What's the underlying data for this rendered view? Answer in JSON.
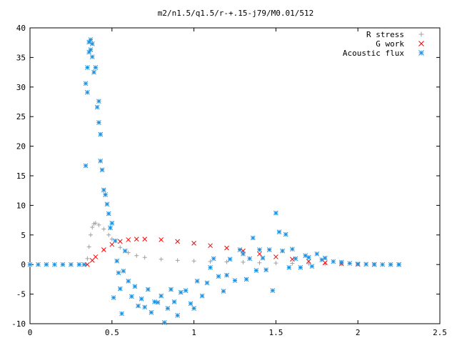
{
  "chart_data": {
    "type": "scatter",
    "title": "m2/n1.5/q1.5/r-+.15-j79/M0.01/512",
    "xlabel": "",
    "ylabel": "",
    "xlim": [
      0,
      2.5
    ],
    "ylim": [
      -10,
      40
    ],
    "x_ticks": [
      "0",
      "0.5",
      "1",
      "1.5",
      "2",
      "2.5"
    ],
    "y_ticks": [
      "-10",
      "-5",
      "0",
      "5",
      "10",
      "15",
      "20",
      "25",
      "30",
      "35",
      "40"
    ],
    "legend_position": "top-right",
    "grid": false,
    "series": [
      {
        "name": "R stress",
        "marker": "plus",
        "color": "#a0a0a0",
        "points": [
          [
            0.0,
            0
          ],
          [
            0.1,
            0
          ],
          [
            0.2,
            0
          ],
          [
            0.3,
            0
          ],
          [
            0.34,
            0
          ],
          [
            0.35,
            1.0
          ],
          [
            0.36,
            3.0
          ],
          [
            0.37,
            5.0
          ],
          [
            0.38,
            6.3
          ],
          [
            0.39,
            6.9
          ],
          [
            0.4,
            7.0
          ],
          [
            0.42,
            6.7
          ],
          [
            0.45,
            6.0
          ],
          [
            0.48,
            5.0
          ],
          [
            0.5,
            4.3
          ],
          [
            0.55,
            2.9
          ],
          [
            0.6,
            2.0
          ],
          [
            0.65,
            1.5
          ],
          [
            0.7,
            1.2
          ],
          [
            0.8,
            0.9
          ],
          [
            0.9,
            0.7
          ],
          [
            1.0,
            0.6
          ],
          [
            1.1,
            0.5
          ],
          [
            1.2,
            0.45
          ],
          [
            1.3,
            0.4
          ],
          [
            1.4,
            0.3
          ],
          [
            1.5,
            0.25
          ],
          [
            1.6,
            0.2
          ],
          [
            1.7,
            0.15
          ],
          [
            1.8,
            0.1
          ],
          [
            1.9,
            0.1
          ],
          [
            2.0,
            0.05
          ],
          [
            2.1,
            0.02
          ],
          [
            2.2,
            0.0
          ],
          [
            2.25,
            0.0
          ]
        ]
      },
      {
        "name": "G work",
        "marker": "cross",
        "color": "#ff0000",
        "points": [
          [
            0.35,
            0.0
          ],
          [
            0.38,
            0.7
          ],
          [
            0.4,
            1.3
          ],
          [
            0.45,
            2.5
          ],
          [
            0.5,
            3.4
          ],
          [
            0.55,
            3.9
          ],
          [
            0.6,
            4.2
          ],
          [
            0.65,
            4.3
          ],
          [
            0.7,
            4.3
          ],
          [
            0.8,
            4.2
          ],
          [
            0.9,
            3.9
          ],
          [
            1.0,
            3.6
          ],
          [
            1.1,
            3.2
          ],
          [
            1.2,
            2.8
          ],
          [
            1.3,
            2.3
          ],
          [
            1.4,
            1.8
          ],
          [
            1.5,
            1.3
          ],
          [
            1.6,
            0.9
          ],
          [
            1.7,
            0.55
          ],
          [
            1.8,
            0.3
          ],
          [
            1.9,
            0.12
          ],
          [
            2.0,
            0.04
          ],
          [
            2.1,
            0.0
          ],
          [
            2.25,
            0.0
          ]
        ]
      },
      {
        "name": "Acoustic flux",
        "marker": "star",
        "color": "#1e90e0",
        "points": [
          [
            0.0,
            0
          ],
          [
            0.05,
            0
          ],
          [
            0.1,
            0
          ],
          [
            0.15,
            0
          ],
          [
            0.2,
            0
          ],
          [
            0.25,
            0
          ],
          [
            0.3,
            0
          ],
          [
            0.33,
            0
          ],
          [
            0.34,
            16.7
          ],
          [
            0.34,
            30.6
          ],
          [
            0.35,
            33.3
          ],
          [
            0.35,
            29.1
          ],
          [
            0.36,
            35.9
          ],
          [
            0.36,
            37.6
          ],
          [
            0.37,
            38.0
          ],
          [
            0.37,
            36.3
          ],
          [
            0.38,
            37.3
          ],
          [
            0.38,
            35.1
          ],
          [
            0.39,
            32.5
          ],
          [
            0.4,
            33.3
          ],
          [
            0.41,
            26.6
          ],
          [
            0.42,
            27.6
          ],
          [
            0.42,
            24.0
          ],
          [
            0.43,
            22.0
          ],
          [
            0.43,
            17.5
          ],
          [
            0.44,
            16.0
          ],
          [
            0.45,
            12.6
          ],
          [
            0.46,
            11.8
          ],
          [
            0.47,
            10.2
          ],
          [
            0.48,
            8.6
          ],
          [
            0.49,
            6.2
          ],
          [
            0.5,
            7.0
          ],
          [
            0.51,
            -5.6
          ],
          [
            0.52,
            4.0
          ],
          [
            0.53,
            0.6
          ],
          [
            0.54,
            -1.4
          ],
          [
            0.55,
            -4.1
          ],
          [
            0.56,
            -8.3
          ],
          [
            0.57,
            -1.1
          ],
          [
            0.58,
            2.3
          ],
          [
            0.6,
            -2.8
          ],
          [
            0.62,
            -5.4
          ],
          [
            0.64,
            -3.7
          ],
          [
            0.66,
            -7.0
          ],
          [
            0.68,
            -5.8
          ],
          [
            0.7,
            -7.2
          ],
          [
            0.72,
            -4.2
          ],
          [
            0.74,
            -8.1
          ],
          [
            0.76,
            -6.3
          ],
          [
            0.78,
            -6.4
          ],
          [
            0.8,
            -5.3
          ],
          [
            0.82,
            -9.8
          ],
          [
            0.84,
            -7.4
          ],
          [
            0.86,
            -4.2
          ],
          [
            0.88,
            -6.3
          ],
          [
            0.9,
            -8.6
          ],
          [
            0.92,
            -4.7
          ],
          [
            0.95,
            -4.4
          ],
          [
            0.98,
            -6.6
          ],
          [
            1.0,
            -7.4
          ],
          [
            1.02,
            -2.8
          ],
          [
            1.05,
            -5.3
          ],
          [
            1.08,
            -3.1
          ],
          [
            1.1,
            -0.5
          ],
          [
            1.12,
            1.0
          ],
          [
            1.15,
            -2.0
          ],
          [
            1.18,
            -4.5
          ],
          [
            1.2,
            -1.8
          ],
          [
            1.22,
            0.9
          ],
          [
            1.25,
            -2.7
          ],
          [
            1.28,
            2.5
          ],
          [
            1.3,
            1.8
          ],
          [
            1.32,
            -2.5
          ],
          [
            1.34,
            1.0
          ],
          [
            1.36,
            4.5
          ],
          [
            1.38,
            -1.0
          ],
          [
            1.4,
            2.5
          ],
          [
            1.42,
            1.1
          ],
          [
            1.44,
            -0.9
          ],
          [
            1.46,
            2.5
          ],
          [
            1.48,
            -4.4
          ],
          [
            1.5,
            8.7
          ],
          [
            1.52,
            5.5
          ],
          [
            1.54,
            2.3
          ],
          [
            1.56,
            5.1
          ],
          [
            1.58,
            -0.5
          ],
          [
            1.6,
            2.6
          ],
          [
            1.62,
            1.0
          ],
          [
            1.65,
            -0.5
          ],
          [
            1.68,
            1.5
          ],
          [
            1.7,
            1.2
          ],
          [
            1.72,
            -0.3
          ],
          [
            1.75,
            1.8
          ],
          [
            1.78,
            0.8
          ],
          [
            1.8,
            1.1
          ],
          [
            1.85,
            0.5
          ],
          [
            1.9,
            0.4
          ],
          [
            1.95,
            0.2
          ],
          [
            2.0,
            0.1
          ],
          [
            2.05,
            0.05
          ],
          [
            2.1,
            0.02
          ],
          [
            2.15,
            0
          ],
          [
            2.2,
            0
          ],
          [
            2.25,
            0
          ]
        ]
      }
    ]
  }
}
